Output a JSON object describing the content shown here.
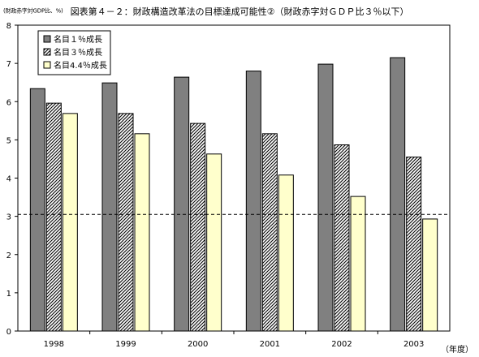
{
  "chart_data": {
    "type": "bar",
    "title": "図表第４－２：財政構造改革法の目標達成可能性②（財政赤字対ＧＤＰ比３％以下）",
    "ylabel": "(財政赤字対GDP比、%)",
    "xlabel": "（年度）",
    "categories": [
      "1998",
      "1999",
      "2000",
      "2001",
      "2002",
      "2003"
    ],
    "series": [
      {
        "name": "名目１％成長",
        "values": [
          6.34,
          6.49,
          6.64,
          6.8,
          6.98,
          7.15
        ],
        "color": "#808080",
        "pattern": "solid"
      },
      {
        "name": "名目３％成長",
        "values": [
          5.96,
          5.69,
          5.43,
          5.16,
          4.87,
          4.55
        ],
        "color": "#000000",
        "pattern": "hatch"
      },
      {
        "name": "名目4.4％成長",
        "values": [
          5.69,
          5.16,
          4.63,
          4.08,
          3.52,
          2.93
        ],
        "color": "#ffffcc",
        "pattern": "solid"
      }
    ],
    "ylim": [
      0,
      8
    ],
    "yticks": [
      0,
      1,
      2,
      3,
      4,
      5,
      6,
      7,
      8
    ],
    "reference_line": {
      "value": 3.05,
      "style": "dashed"
    },
    "legend_position": "top-left",
    "grid": false
  }
}
